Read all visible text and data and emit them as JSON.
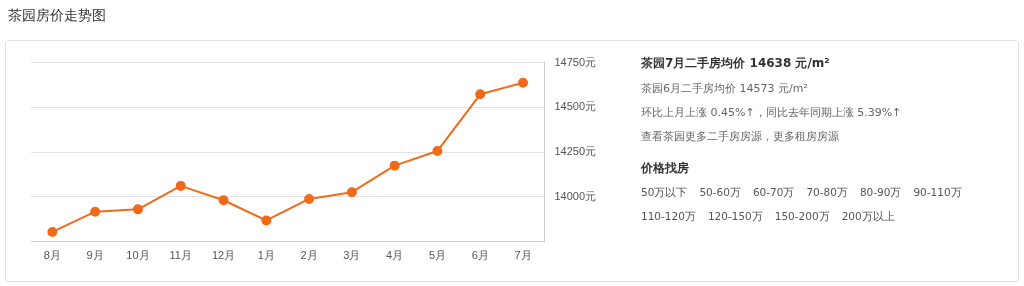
{
  "chart_data": {
    "type": "line",
    "title": "茶园房价走势图",
    "categories": [
      "8月",
      "9月",
      "10月",
      "11月",
      "12月",
      "1月",
      "2月",
      "3月",
      "4月",
      "5月",
      "6月",
      "7月"
    ],
    "series": [
      {
        "color": "#f06a1a",
        "values": [
          13805,
          13918,
          13931,
          14062,
          13982,
          13869,
          13989,
          14027,
          14175,
          14257,
          14573,
          14638
        ]
      }
    ],
    "ylim": [
      13750,
      14750
    ],
    "yticks": [
      {
        "value": 14000,
        "label": "14000元"
      },
      {
        "value": 14250,
        "label": "14250元"
      },
      {
        "value": 14500,
        "label": "14500元"
      },
      {
        "value": 14750,
        "label": "14750元"
      }
    ],
    "grid": "y",
    "marker": "circle",
    "legend": false,
    "annotations": [
      "茶园7月二手房均价 14638 元/m²",
      "茶园6月二手房均价 14573 元/m²",
      "环比上月上涨 0.45%↑，同比去年同期上涨 5.39%↑",
      "查看茶园更多二手房房源，更多租房房源",
      "价格找房",
      "50万以下",
      "50-60万",
      "60-70万",
      "70-80万",
      "80-90万",
      "90-110万",
      "110-120万",
      "120-150万",
      "150-200万",
      "200万以上"
    ]
  }
}
